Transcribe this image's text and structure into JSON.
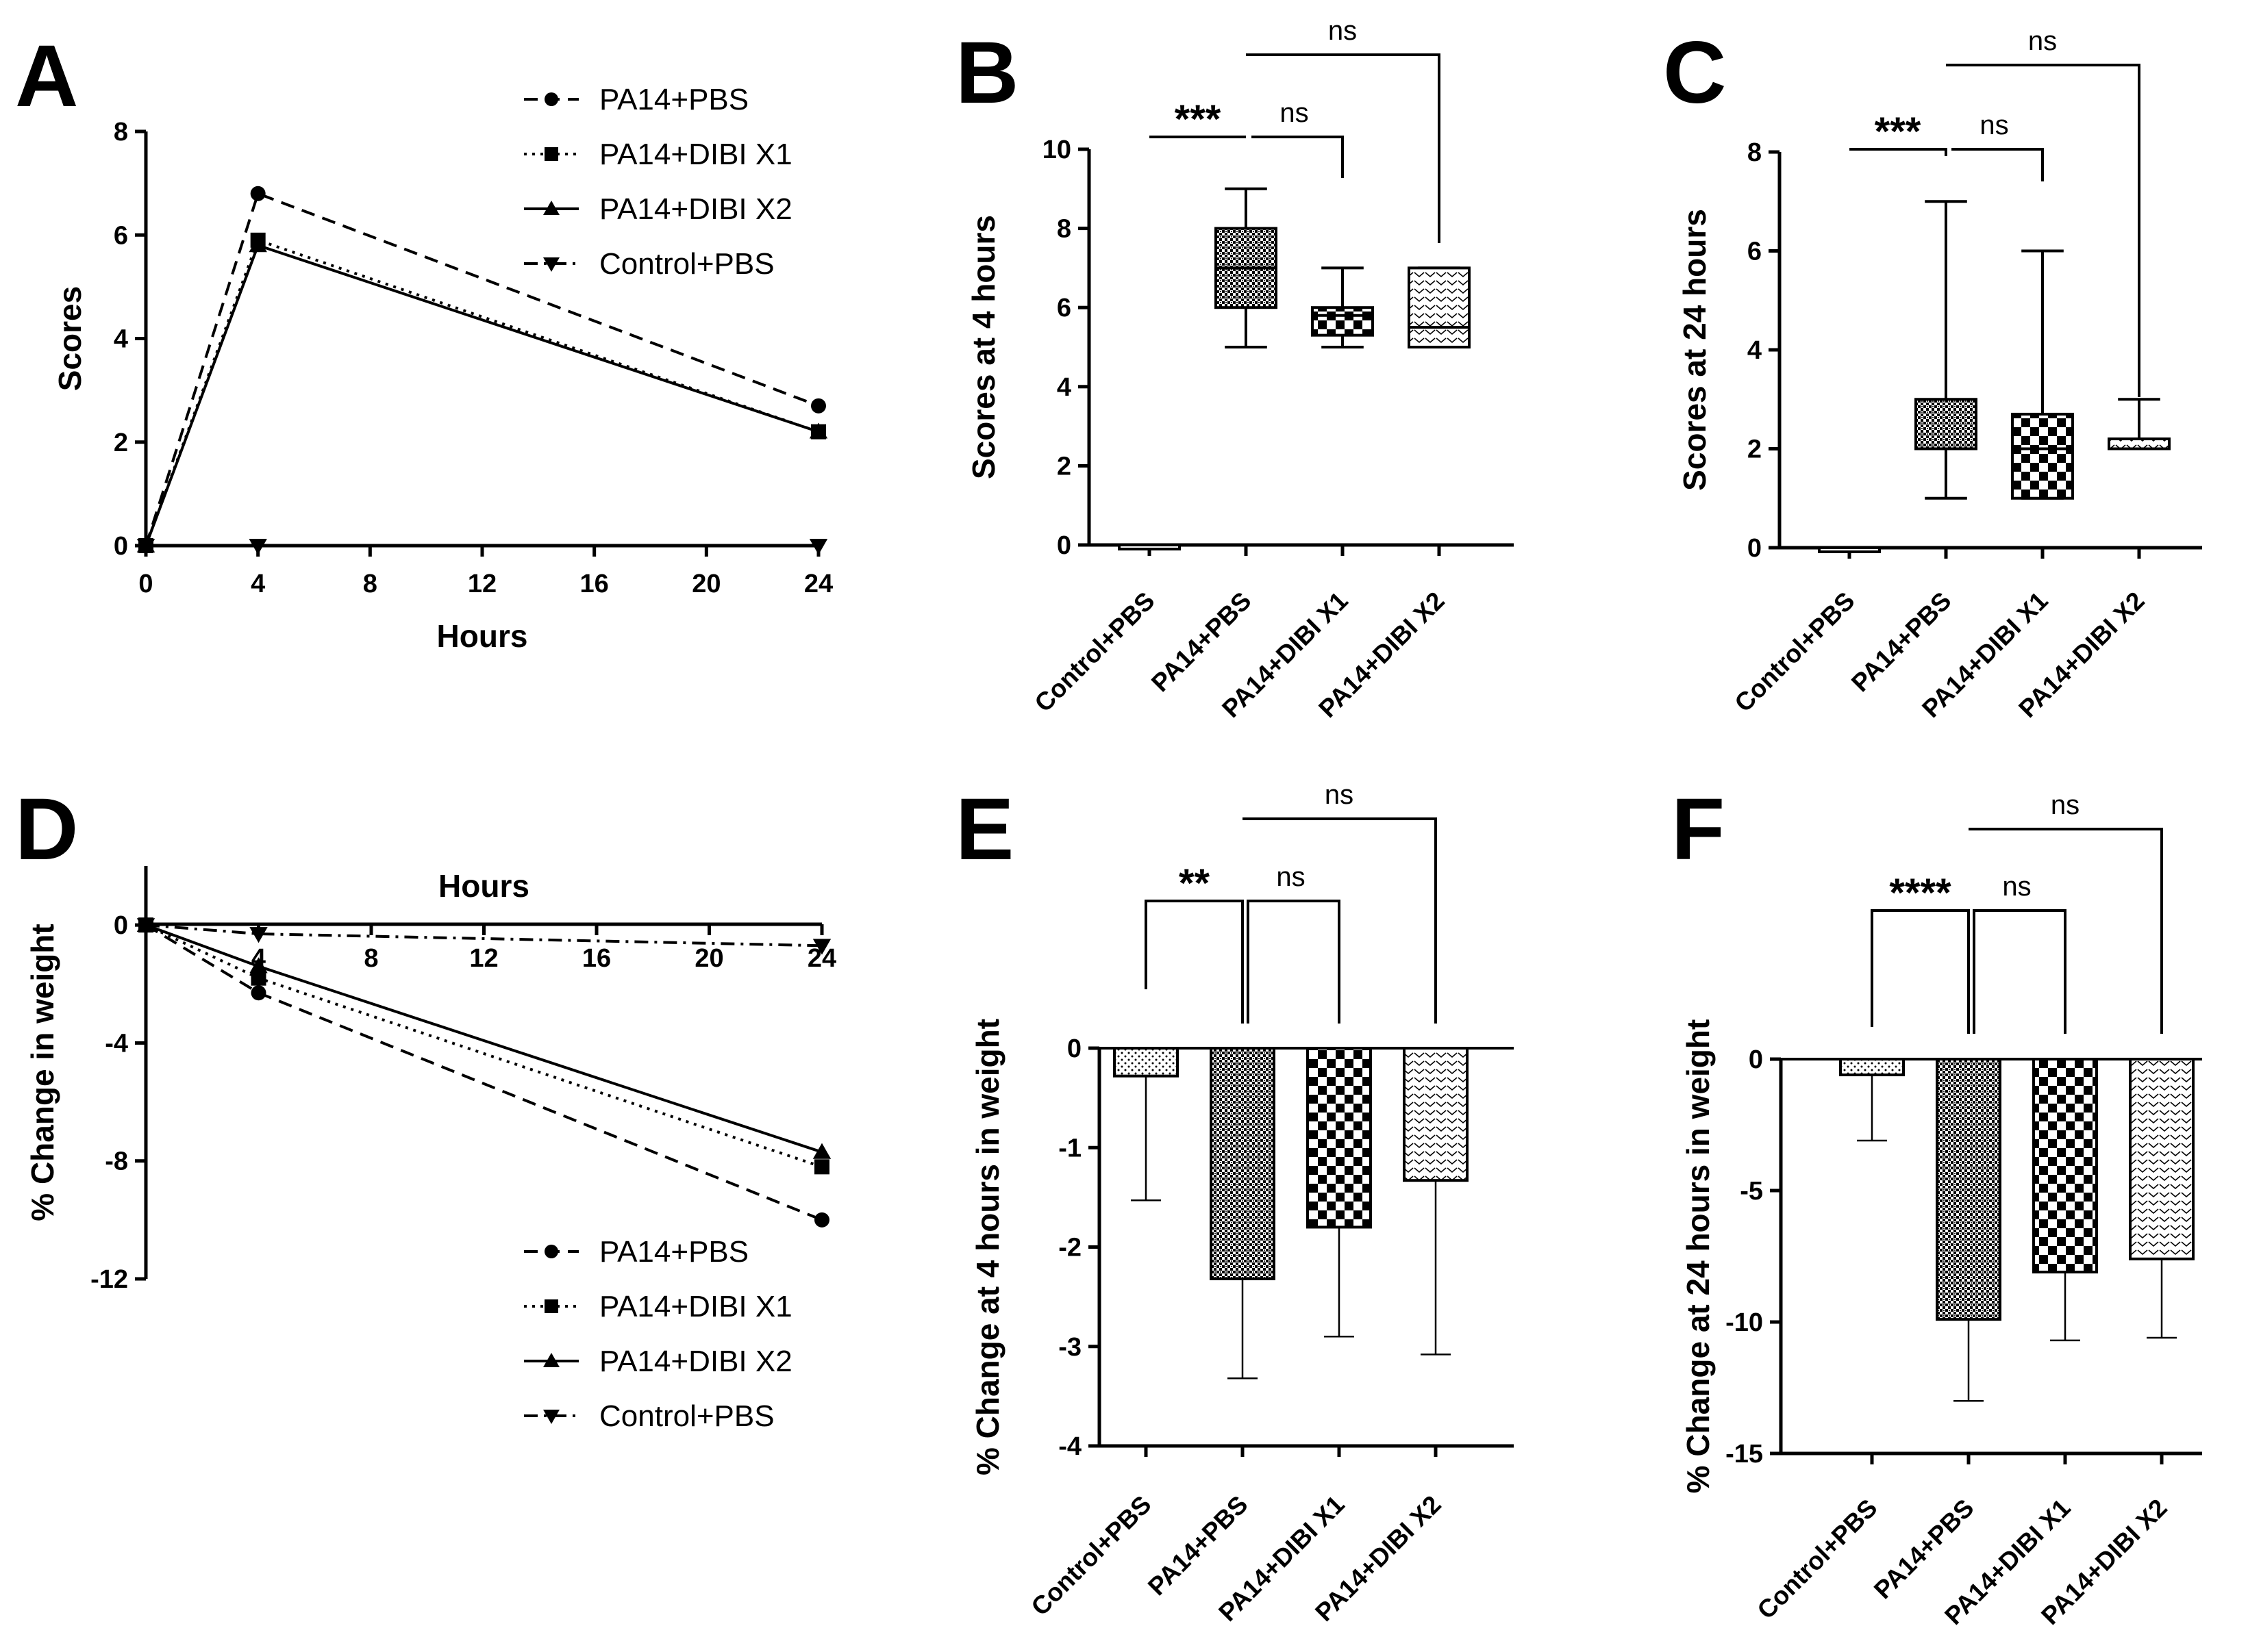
{
  "panels": {
    "a": "A",
    "b": "B",
    "c": "C",
    "d": "D",
    "e": "E",
    "f": "F"
  },
  "colors": {
    "ink": "#000000",
    "fill_light": "#f0f0f0",
    "fill_dark": "#888888"
  },
  "chart_data": [
    {
      "id": "A",
      "type": "line",
      "xlabel": "Hours",
      "ylabel": "Scores",
      "xlim": [
        0,
        24
      ],
      "ylim": [
        0,
        8
      ],
      "xticks": [
        "0",
        "4",
        "8",
        "12",
        "16",
        "20",
        "24"
      ],
      "yticks": [
        "0",
        "2",
        "4",
        "6",
        "8"
      ],
      "x": [
        0,
        4,
        24
      ],
      "series": [
        {
          "name": "PA14+PBS",
          "marker": "circle",
          "dash": "dashed",
          "values": [
            0,
            6.8,
            2.7
          ]
        },
        {
          "name": "PA14+DIBI X1",
          "marker": "square",
          "dash": "dotted",
          "values": [
            0,
            5.9,
            2.2
          ]
        },
        {
          "name": "PA14+DIBI X2",
          "marker": "triangle-up",
          "dash": "solid",
          "values": [
            0,
            5.8,
            2.2
          ]
        },
        {
          "name": "Control+PBS",
          "marker": "triangle-down",
          "dash": "dashdot",
          "values": [
            0,
            0,
            0
          ]
        }
      ]
    },
    {
      "id": "B",
      "type": "box",
      "ylabel": "Scores at 4 hours",
      "ylim": [
        0,
        10
      ],
      "yticks": [
        "0",
        "2",
        "4",
        "6",
        "8",
        "10"
      ],
      "categories": [
        "Control+PBS",
        "PA14+PBS",
        "PA14+DIBI X1",
        "PA14+DIBI X2"
      ],
      "boxes": [
        {
          "min": 0,
          "q1": 0,
          "median": 0,
          "q3": 0,
          "max": 0
        },
        {
          "min": 5,
          "q1": 6,
          "median": 7,
          "q3": 8,
          "max": 9
        },
        {
          "min": 5,
          "q1": 5.3,
          "median": 5.8,
          "q3": 6,
          "max": 7
        },
        {
          "min": 5,
          "q1": 5,
          "median": 5.5,
          "q3": 7,
          "max": 7
        }
      ],
      "brackets": [
        {
          "from": 0,
          "to": 1,
          "label": "***"
        },
        {
          "from": 1,
          "to": 2,
          "label": "ns"
        },
        {
          "from": 1,
          "to": 3,
          "label": "ns"
        }
      ]
    },
    {
      "id": "C",
      "type": "box",
      "ylabel": "Scores at 24 hours",
      "ylim": [
        0,
        8
      ],
      "yticks": [
        "0",
        "2",
        "4",
        "6",
        "8"
      ],
      "categories": [
        "Control+PBS",
        "PA14+PBS",
        "PA14+DIBI X1",
        "PA14+DIBI X2"
      ],
      "boxes": [
        {
          "min": 0,
          "q1": 0,
          "median": 0,
          "q3": 0,
          "max": 0
        },
        {
          "min": 1,
          "q1": 2,
          "median": 2,
          "q3": 3,
          "max": 7
        },
        {
          "min": 1,
          "q1": 1,
          "median": 2,
          "q3": 2.7,
          "max": 6
        },
        {
          "min": 2,
          "q1": 2,
          "median": 2,
          "q3": 2.2,
          "max": 3
        }
      ],
      "brackets": [
        {
          "from": 0,
          "to": 1,
          "label": "***"
        },
        {
          "from": 1,
          "to": 2,
          "label": "ns"
        },
        {
          "from": 1,
          "to": 3,
          "label": "ns"
        }
      ]
    },
    {
      "id": "D",
      "type": "line",
      "xlabel": "Hours",
      "ylabel": "% Change in weight",
      "xlim": [
        0,
        24
      ],
      "ylim": [
        -12,
        2
      ],
      "xticks": [
        "4",
        "8",
        "12",
        "16",
        "20",
        "24"
      ],
      "yticks": [
        "0",
        "-4",
        "-8",
        "-12"
      ],
      "x": [
        0,
        4,
        24
      ],
      "series": [
        {
          "name": "PA14+PBS",
          "marker": "circle",
          "dash": "dashed",
          "values": [
            0,
            -2.3,
            -10.0
          ]
        },
        {
          "name": "PA14+DIBI X1",
          "marker": "square",
          "dash": "dotted",
          "values": [
            0,
            -1.8,
            -8.2
          ]
        },
        {
          "name": "PA14+DIBI X2",
          "marker": "triangle-up",
          "dash": "solid",
          "values": [
            0,
            -1.4,
            -7.7
          ]
        },
        {
          "name": "Control+PBS",
          "marker": "triangle-down",
          "dash": "dashdot",
          "values": [
            0,
            -0.3,
            -0.7
          ]
        }
      ]
    },
    {
      "id": "E",
      "type": "bar",
      "ylabel": "% Change at 4 hours in weight",
      "ylim": [
        -4,
        0
      ],
      "yticks": [
        "0",
        "-1",
        "-2",
        "-3",
        "-4"
      ],
      "categories": [
        "Control+PBS",
        "PA14+PBS",
        "PA14+DIBI X1",
        "PA14+DIBI X2"
      ],
      "values": [
        -0.28,
        -2.32,
        -1.8,
        -1.33
      ],
      "errors": [
        1.25,
        1.0,
        1.1,
        1.75
      ],
      "brackets": [
        {
          "from": 0,
          "to": 1,
          "label": "**"
        },
        {
          "from": 1,
          "to": 2,
          "label": "ns"
        },
        {
          "from": 1,
          "to": 3,
          "label": "ns"
        }
      ]
    },
    {
      "id": "F",
      "type": "bar",
      "ylabel": "% Change at 24 hours in weight",
      "ylim": [
        -15,
        0
      ],
      "yticks": [
        "0",
        "-5",
        "-10",
        "-15"
      ],
      "categories": [
        "Control+PBS",
        "PA14+PBS",
        "PA14+DIBI X1",
        "PA14+DIBI X2"
      ],
      "values": [
        -0.6,
        -9.9,
        -8.1,
        -7.6
      ],
      "errors": [
        2.5,
        3.1,
        2.6,
        3.0
      ],
      "brackets": [
        {
          "from": 0,
          "to": 1,
          "label": "****"
        },
        {
          "from": 1,
          "to": 2,
          "label": "ns"
        },
        {
          "from": 1,
          "to": 3,
          "label": "ns"
        }
      ]
    }
  ]
}
